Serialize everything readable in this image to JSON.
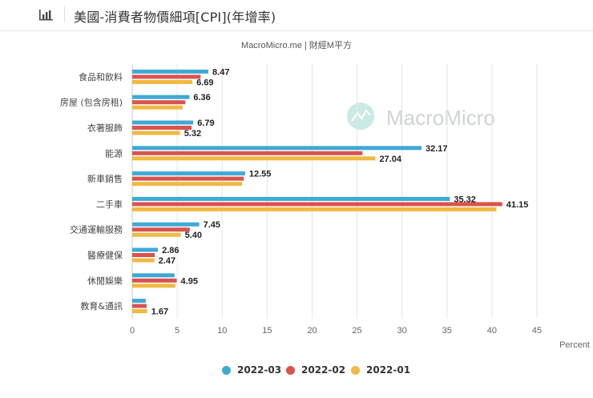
{
  "header": {
    "title": "美國-消費者物價細項[CPI](年增率)",
    "icon": "bar-chart-icon"
  },
  "watermark": {
    "text": "MacroMicro",
    "icon": "macromicro-logo-icon"
  },
  "colors": {
    "series": [
      "#3fa9d6",
      "#d9534f",
      "#f0b941"
    ],
    "grid": "#e6e6e6",
    "axis_text": "#666666",
    "watermark": "#9fd9cf"
  },
  "chart_data": {
    "type": "bar",
    "orientation": "horizontal",
    "subtitle": "MacroMicro.me | 財經M平方",
    "categories": [
      "食品和飲料",
      "房屋 (包含房租)",
      "衣著服飾",
      "能源",
      "新車銷售",
      "二手車",
      "交通運輸服務",
      "醫療健保",
      "休閒娛樂",
      "教育&通訊"
    ],
    "series": [
      {
        "name": "2022-03",
        "values": [
          8.47,
          6.36,
          6.79,
          32.17,
          12.55,
          35.32,
          7.45,
          2.86,
          4.7,
          1.5
        ]
      },
      {
        "name": "2022-02",
        "values": [
          7.6,
          5.9,
          6.6,
          25.6,
          12.4,
          41.15,
          6.4,
          2.5,
          4.95,
          1.6
        ]
      },
      {
        "name": "2022-01",
        "values": [
          6.69,
          5.6,
          5.32,
          27.04,
          12.2,
          40.5,
          5.4,
          2.47,
          4.8,
          1.67
        ]
      }
    ],
    "data_labels": [
      {
        "category": "食品和飲料",
        "series": "2022-03",
        "text": "8.47"
      },
      {
        "category": "食品和飲料",
        "series": "2022-01",
        "text": "6.69"
      },
      {
        "category": "房屋 (包含房租)",
        "series": "2022-03",
        "text": "6.36"
      },
      {
        "category": "衣著服飾",
        "series": "2022-03",
        "text": "6.79"
      },
      {
        "category": "衣著服飾",
        "series": "2022-01",
        "text": "5.32"
      },
      {
        "category": "能源",
        "series": "2022-03",
        "text": "32.17"
      },
      {
        "category": "能源",
        "series": "2022-01",
        "text": "27.04"
      },
      {
        "category": "新車銷售",
        "series": "2022-03",
        "text": "12.55"
      },
      {
        "category": "二手車",
        "series": "2022-03",
        "text": "35.32"
      },
      {
        "category": "二手車",
        "series": "2022-02",
        "text": "41.15"
      },
      {
        "category": "交通運輸服務",
        "series": "2022-03",
        "text": "7.45"
      },
      {
        "category": "交通運輸服務",
        "series": "2022-01",
        "text": "5.40"
      },
      {
        "category": "醫療健保",
        "series": "2022-03",
        "text": "2.86"
      },
      {
        "category": "醫療健保",
        "series": "2022-01",
        "text": "2.47"
      },
      {
        "category": "休閒娛樂",
        "series": "2022-02",
        "text": "4.95"
      },
      {
        "category": "教育&通訊",
        "series": "2022-01",
        "text": "1.67"
      }
    ],
    "x_ticks": [
      "0",
      "5",
      "10",
      "15",
      "20",
      "25",
      "30",
      "35",
      "40",
      "45"
    ],
    "xlim": [
      0,
      45
    ],
    "xlabel": "Percent",
    "ylabel": "",
    "grid": true,
    "legend": "bottom-center"
  }
}
